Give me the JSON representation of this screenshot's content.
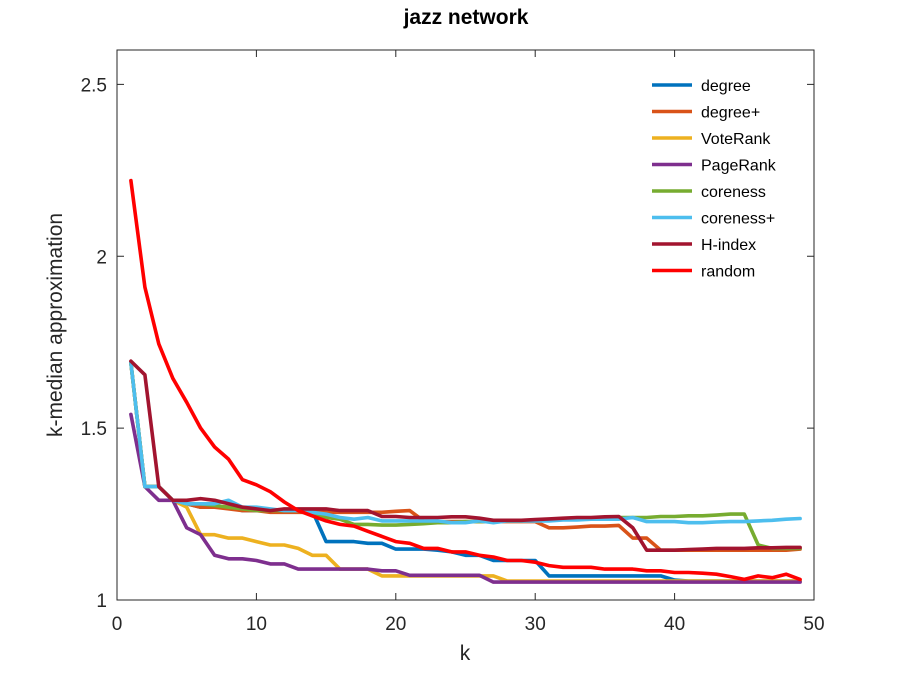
{
  "chart_data": {
    "type": "line",
    "title": "jazz network",
    "xlabel": "k",
    "ylabel": "k-median approximation",
    "xlim": [
      0,
      50
    ],
    "ylim": [
      1,
      2.6
    ],
    "xticks": [
      0,
      10,
      20,
      30,
      40,
      50
    ],
    "yticks": [
      1,
      1.5,
      2,
      2.5
    ],
    "xtick_labels": [
      "0",
      "10",
      "20",
      "30",
      "40",
      "50"
    ],
    "ytick_labels": [
      "1",
      "1.5",
      "2",
      "2.5"
    ],
    "grid": false,
    "legend_position": "top-right",
    "series": [
      {
        "name": "degree",
        "color": "#0072BD",
        "x": [
          1,
          2,
          3,
          4,
          5,
          6,
          7,
          8,
          9,
          10,
          11,
          12,
          13,
          14,
          15,
          16,
          17,
          18,
          19,
          20,
          21,
          22,
          23,
          24,
          25,
          26,
          27,
          28,
          29,
          30,
          31,
          32,
          33,
          34,
          35,
          36,
          37,
          38,
          39,
          40,
          41,
          42,
          43,
          44,
          45,
          46,
          47,
          48,
          49
        ],
        "y": [
          1.69,
          1.33,
          1.33,
          1.29,
          1.28,
          1.27,
          1.27,
          1.27,
          1.26,
          1.26,
          1.26,
          1.26,
          1.26,
          1.26,
          1.17,
          1.17,
          1.17,
          1.165,
          1.165,
          1.148,
          1.148,
          1.148,
          1.145,
          1.14,
          1.13,
          1.13,
          1.115,
          1.115,
          1.115,
          1.115,
          1.07,
          1.07,
          1.07,
          1.07,
          1.07,
          1.07,
          1.07,
          1.07,
          1.07,
          1.058,
          1.055,
          1.055,
          1.055,
          1.055,
          1.055,
          1.055,
          1.055,
          1.055,
          1.055
        ]
      },
      {
        "name": "degree+",
        "color": "#D95319",
        "x": [
          1,
          2,
          3,
          4,
          5,
          6,
          7,
          8,
          9,
          10,
          11,
          12,
          13,
          14,
          15,
          16,
          17,
          18,
          19,
          20,
          21,
          22,
          23,
          24,
          25,
          26,
          27,
          28,
          29,
          30,
          31,
          32,
          33,
          34,
          35,
          36,
          37,
          38,
          39,
          40,
          41,
          42,
          43,
          44,
          45,
          46,
          47,
          48,
          49
        ],
        "y": [
          1.69,
          1.33,
          1.33,
          1.29,
          1.28,
          1.27,
          1.27,
          1.265,
          1.26,
          1.26,
          1.255,
          1.255,
          1.255,
          1.255,
          1.255,
          1.255,
          1.255,
          1.255,
          1.255,
          1.258,
          1.26,
          1.23,
          1.228,
          1.228,
          1.228,
          1.228,
          1.228,
          1.228,
          1.228,
          1.228,
          1.21,
          1.21,
          1.212,
          1.215,
          1.215,
          1.217,
          1.18,
          1.18,
          1.145,
          1.145,
          1.145,
          1.145,
          1.145,
          1.145,
          1.145,
          1.145,
          1.145,
          1.145,
          1.148
        ]
      },
      {
        "name": "VoteRank",
        "color": "#EDB120",
        "x": [
          1,
          2,
          3,
          4,
          5,
          6,
          7,
          8,
          9,
          10,
          11,
          12,
          13,
          14,
          15,
          16,
          17,
          18,
          19,
          20,
          21,
          22,
          23,
          24,
          25,
          26,
          27,
          28,
          29,
          30,
          31,
          32,
          33,
          34,
          35,
          36,
          37,
          38,
          39,
          40,
          41,
          42,
          43,
          44,
          45,
          46,
          47,
          48,
          49
        ],
        "y": [
          1.69,
          1.33,
          1.33,
          1.29,
          1.27,
          1.19,
          1.19,
          1.18,
          1.18,
          1.17,
          1.16,
          1.16,
          1.15,
          1.13,
          1.13,
          1.09,
          1.09,
          1.09,
          1.07,
          1.07,
          1.07,
          1.07,
          1.07,
          1.07,
          1.07,
          1.07,
          1.07,
          1.055,
          1.055,
          1.055,
          1.055,
          1.055,
          1.055,
          1.055,
          1.055,
          1.055,
          1.055,
          1.055,
          1.055,
          1.055,
          1.055,
          1.055,
          1.055,
          1.055,
          1.055,
          1.055,
          1.055,
          1.055,
          1.055
        ]
      },
      {
        "name": "PageRank",
        "color": "#7E2F8E",
        "x": [
          1,
          2,
          3,
          4,
          5,
          6,
          7,
          8,
          9,
          10,
          11,
          12,
          13,
          14,
          15,
          16,
          17,
          18,
          19,
          20,
          21,
          22,
          23,
          24,
          25,
          26,
          27,
          28,
          29,
          30,
          31,
          32,
          33,
          34,
          35,
          36,
          37,
          38,
          39,
          40,
          41,
          42,
          43,
          44,
          45,
          46,
          47,
          48,
          49
        ],
        "y": [
          1.54,
          1.33,
          1.29,
          1.29,
          1.21,
          1.19,
          1.13,
          1.12,
          1.12,
          1.115,
          1.105,
          1.105,
          1.09,
          1.09,
          1.09,
          1.09,
          1.09,
          1.09,
          1.085,
          1.085,
          1.072,
          1.072,
          1.072,
          1.072,
          1.072,
          1.072,
          1.052,
          1.052,
          1.052,
          1.052,
          1.052,
          1.052,
          1.052,
          1.052,
          1.052,
          1.052,
          1.052,
          1.052,
          1.052,
          1.052,
          1.052,
          1.052,
          1.052,
          1.052,
          1.052,
          1.052,
          1.052,
          1.052,
          1.052
        ]
      },
      {
        "name": "coreness",
        "color": "#77AC30",
        "x": [
          1,
          2,
          3,
          4,
          5,
          6,
          7,
          8,
          9,
          10,
          11,
          12,
          13,
          14,
          15,
          16,
          17,
          18,
          19,
          20,
          21,
          22,
          23,
          24,
          25,
          26,
          27,
          28,
          29,
          30,
          31,
          32,
          33,
          34,
          35,
          36,
          37,
          38,
          39,
          40,
          41,
          42,
          43,
          44,
          45,
          46,
          47,
          48,
          49
        ],
        "y": [
          1.69,
          1.33,
          1.33,
          1.29,
          1.28,
          1.28,
          1.275,
          1.27,
          1.265,
          1.26,
          1.26,
          1.26,
          1.26,
          1.255,
          1.24,
          1.235,
          1.22,
          1.22,
          1.218,
          1.218,
          1.22,
          1.222,
          1.225,
          1.225,
          1.228,
          1.228,
          1.228,
          1.23,
          1.23,
          1.232,
          1.232,
          1.235,
          1.235,
          1.235,
          1.24,
          1.24,
          1.24,
          1.24,
          1.243,
          1.243,
          1.245,
          1.245,
          1.247,
          1.25,
          1.25,
          1.16,
          1.15,
          1.15,
          1.15
        ]
      },
      {
        "name": "coreness+",
        "color": "#4DBEEE",
        "x": [
          1,
          2,
          3,
          4,
          5,
          6,
          7,
          8,
          9,
          10,
          11,
          12,
          13,
          14,
          15,
          16,
          17,
          18,
          19,
          20,
          21,
          22,
          23,
          24,
          25,
          26,
          27,
          28,
          29,
          30,
          31,
          32,
          33,
          34,
          35,
          36,
          37,
          38,
          39,
          40,
          41,
          42,
          43,
          44,
          45,
          46,
          47,
          48,
          49
        ],
        "y": [
          1.69,
          1.33,
          1.33,
          1.29,
          1.28,
          1.28,
          1.28,
          1.29,
          1.27,
          1.27,
          1.265,
          1.26,
          1.26,
          1.255,
          1.25,
          1.24,
          1.235,
          1.24,
          1.23,
          1.23,
          1.23,
          1.23,
          1.23,
          1.225,
          1.225,
          1.23,
          1.225,
          1.23,
          1.23,
          1.23,
          1.23,
          1.233,
          1.233,
          1.235,
          1.235,
          1.235,
          1.24,
          1.228,
          1.228,
          1.228,
          1.225,
          1.225,
          1.227,
          1.228,
          1.228,
          1.23,
          1.232,
          1.235,
          1.237
        ]
      },
      {
        "name": "H-index",
        "color": "#A2142F",
        "x": [
          1,
          2,
          3,
          4,
          5,
          6,
          7,
          8,
          9,
          10,
          11,
          12,
          13,
          14,
          15,
          16,
          17,
          18,
          19,
          20,
          21,
          22,
          23,
          24,
          25,
          26,
          27,
          28,
          29,
          30,
          31,
          32,
          33,
          34,
          35,
          36,
          37,
          38,
          39,
          40,
          41,
          42,
          43,
          44,
          45,
          46,
          47,
          48,
          49
        ],
        "y": [
          1.695,
          1.655,
          1.33,
          1.29,
          1.29,
          1.295,
          1.29,
          1.28,
          1.27,
          1.265,
          1.26,
          1.265,
          1.265,
          1.265,
          1.265,
          1.26,
          1.26,
          1.26,
          1.243,
          1.243,
          1.24,
          1.24,
          1.24,
          1.242,
          1.242,
          1.238,
          1.232,
          1.232,
          1.232,
          1.234,
          1.236,
          1.238,
          1.24,
          1.24,
          1.242,
          1.243,
          1.21,
          1.145,
          1.145,
          1.145,
          1.147,
          1.148,
          1.15,
          1.15,
          1.15,
          1.152,
          1.152,
          1.153,
          1.153
        ]
      },
      {
        "name": "random",
        "color": "#FF0000",
        "x": [
          1,
          2,
          3,
          4,
          5,
          6,
          7,
          8,
          9,
          10,
          11,
          12,
          13,
          14,
          15,
          16,
          17,
          18,
          19,
          20,
          21,
          22,
          23,
          24,
          25,
          26,
          27,
          28,
          29,
          30,
          31,
          32,
          33,
          34,
          35,
          36,
          37,
          38,
          39,
          40,
          41,
          42,
          43,
          44,
          45,
          46,
          47,
          48,
          49
        ],
        "y": [
          2.22,
          1.91,
          1.745,
          1.645,
          1.575,
          1.5,
          1.445,
          1.41,
          1.35,
          1.335,
          1.315,
          1.285,
          1.26,
          1.245,
          1.23,
          1.22,
          1.215,
          1.2,
          1.185,
          1.17,
          1.165,
          1.15,
          1.15,
          1.14,
          1.14,
          1.13,
          1.125,
          1.115,
          1.115,
          1.11,
          1.1,
          1.095,
          1.095,
          1.095,
          1.09,
          1.09,
          1.09,
          1.085,
          1.085,
          1.08,
          1.08,
          1.078,
          1.075,
          1.068,
          1.06,
          1.07,
          1.065,
          1.075,
          1.06
        ]
      }
    ]
  }
}
